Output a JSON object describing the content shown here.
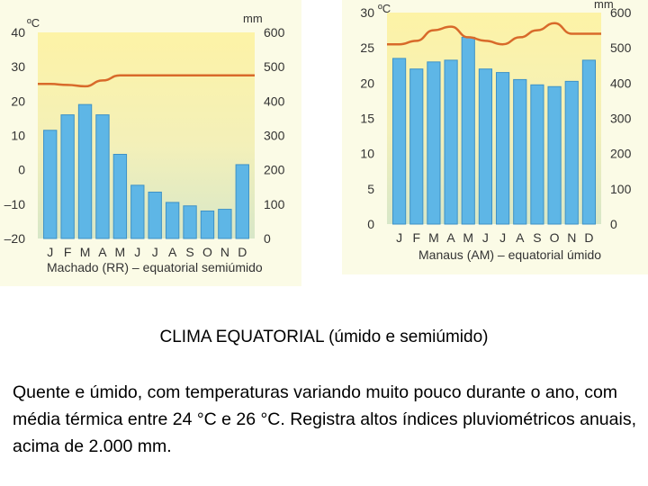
{
  "chart_data": [
    {
      "type": "bar",
      "caption": "Machado (RR) – equatorial semiúmido",
      "categories": [
        "J",
        "F",
        "M",
        "A",
        "M",
        "J",
        "J",
        "A",
        "S",
        "O",
        "N",
        "D"
      ],
      "left_axis_unit": "ºC",
      "right_axis_unit": "mm",
      "left_ticks": [
        40,
        30,
        20,
        10,
        0,
        -10,
        -20
      ],
      "right_ticks": [
        600,
        500,
        400,
        300,
        200,
        100,
        0
      ],
      "ylim_temperature": [
        -20,
        40
      ],
      "ylim_precipitation": [
        0,
        600
      ],
      "series": [
        {
          "kind": "precipitation",
          "values": [
            315,
            360,
            390,
            360,
            245,
            155,
            135,
            105,
            95,
            80,
            85,
            215
          ]
        },
        {
          "kind": "temperature",
          "values": [
            25,
            24.7,
            24.3,
            26,
            27.5,
            27.5,
            27.5,
            27.5,
            27.5,
            27.5,
            27.5,
            27.5
          ]
        }
      ],
      "colors": {
        "bar": "#5eb6e6",
        "bar_edge": "#3f92c6",
        "line": "#d86a2a",
        "background_top": "#fdf3a6",
        "background_bottom": "#d7e7c8"
      }
    },
    {
      "type": "bar",
      "caption": "Manaus (AM) – equatorial úmido",
      "categories": [
        "J",
        "F",
        "M",
        "A",
        "M",
        "J",
        "J",
        "A",
        "S",
        "O",
        "N",
        "D"
      ],
      "left_axis_unit": "ºC",
      "right_axis_unit": "mm",
      "left_ticks": [
        30,
        25,
        20,
        15,
        10,
        5,
        0
      ],
      "right_ticks": [
        600,
        500,
        400,
        300,
        200,
        100,
        0
      ],
      "ylim_temperature": [
        0,
        30
      ],
      "ylim_precipitation": [
        0,
        600
      ],
      "series": [
        {
          "kind": "precipitation",
          "values": [
            470,
            440,
            460,
            465,
            530,
            440,
            430,
            410,
            395,
            390,
            405,
            465
          ]
        },
        {
          "kind": "temperature",
          "values": [
            25.5,
            26,
            27.5,
            28,
            26.5,
            26,
            25.5,
            26.5,
            27.5,
            28.5,
            27,
            27
          ]
        }
      ],
      "colors": {
        "bar": "#5eb6e6",
        "bar_edge": "#3f92c6",
        "line": "#d86a2a",
        "background_top": "#fdf3a6",
        "background_bottom": "#d7e7c8"
      }
    }
  ],
  "caption": {
    "title": "CLIMA EQUATORIAL (úmido e semiúmido)",
    "body": "Quente e úmido, com temperaturas variando muito pouco durante o ano, com média térmica entre 24 °C e 26 °C. Registra altos índices pluviométricos anuais, acima de 2.000 mm."
  }
}
